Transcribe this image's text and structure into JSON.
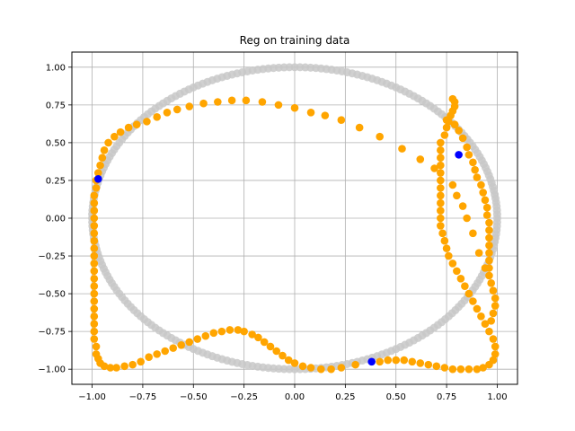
{
  "chart_data": {
    "type": "scatter",
    "title": "Reg on training data",
    "xlabel": "",
    "ylabel": "",
    "xlim": [
      -1.1,
      1.1
    ],
    "ylim": [
      -1.1,
      1.1
    ],
    "grid": true,
    "x_ticks": [
      -1.0,
      -0.75,
      -0.5,
      -0.25,
      0.0,
      0.25,
      0.5,
      0.75,
      1.0
    ],
    "y_ticks": [
      -1.0,
      -0.75,
      -0.5,
      -0.25,
      0.0,
      0.25,
      0.5,
      0.75,
      1.0
    ],
    "x_tick_labels": [
      "−1.00",
      "−0.75",
      "−0.50",
      "−0.25",
      "0.00",
      "0.25",
      "0.50",
      "0.75",
      "1.00"
    ],
    "y_tick_labels": [
      "−1.00",
      "−0.75",
      "−0.50",
      "−0.25",
      "0.00",
      "0.25",
      "0.50",
      "0.75",
      "1.00"
    ],
    "series": [
      {
        "name": "unit circle",
        "color": "#c8c8c8",
        "shape": "circle",
        "radius": 1.0,
        "count": 240
      },
      {
        "name": "regression",
        "color": "#ffa500",
        "points": [
          [
            0.78,
            0.79
          ],
          [
            0.79,
            0.77
          ],
          [
            0.79,
            0.74
          ],
          [
            0.78,
            0.71
          ],
          [
            0.77,
            0.68
          ],
          [
            0.75,
            0.65
          ],
          [
            0.75,
            0.6
          ],
          [
            0.74,
            0.55
          ],
          [
            0.72,
            0.5
          ],
          [
            0.72,
            0.45
          ],
          [
            0.72,
            0.4
          ],
          [
            0.72,
            0.35
          ],
          [
            0.72,
            0.3
          ],
          [
            0.72,
            0.25
          ],
          [
            0.72,
            0.2
          ],
          [
            0.72,
            0.15
          ],
          [
            0.72,
            0.1
          ],
          [
            0.72,
            0.05
          ],
          [
            0.72,
            0.0
          ],
          [
            0.72,
            -0.05
          ],
          [
            0.73,
            -0.1
          ],
          [
            0.74,
            -0.15
          ],
          [
            0.75,
            -0.2
          ],
          [
            0.76,
            -0.25
          ],
          [
            0.78,
            -0.3
          ],
          [
            0.8,
            -0.35
          ],
          [
            0.82,
            -0.4
          ],
          [
            0.84,
            -0.45
          ],
          [
            0.86,
            -0.5
          ],
          [
            0.88,
            -0.55
          ],
          [
            0.9,
            -0.6
          ],
          [
            0.92,
            -0.65
          ],
          [
            0.94,
            -0.7
          ],
          [
            0.96,
            -0.75
          ],
          [
            0.98,
            -0.8
          ],
          [
            0.99,
            -0.85
          ],
          [
            0.99,
            -0.9
          ],
          [
            0.98,
            -0.94
          ],
          [
            0.96,
            -0.97
          ],
          [
            0.93,
            -0.99
          ],
          [
            0.9,
            -1.0
          ],
          [
            0.86,
            -1.0
          ],
          [
            0.82,
            -1.0
          ],
          [
            0.78,
            -1.0
          ],
          [
            0.74,
            -0.99
          ],
          [
            0.7,
            -0.98
          ],
          [
            0.66,
            -0.97
          ],
          [
            0.62,
            -0.96
          ],
          [
            0.58,
            -0.95
          ],
          [
            0.54,
            -0.94
          ],
          [
            0.5,
            -0.94
          ],
          [
            0.46,
            -0.94
          ],
          [
            0.42,
            -0.95
          ],
          [
            0.3,
            -0.97
          ],
          [
            0.23,
            -0.99
          ],
          [
            0.18,
            -1.0
          ],
          [
            0.13,
            -1.0
          ],
          [
            0.08,
            -0.99
          ],
          [
            0.04,
            -0.98
          ],
          [
            0.0,
            -0.96
          ],
          [
            -0.03,
            -0.94
          ],
          [
            -0.06,
            -0.91
          ],
          [
            -0.09,
            -0.88
          ],
          [
            -0.12,
            -0.85
          ],
          [
            -0.15,
            -0.82
          ],
          [
            -0.18,
            -0.79
          ],
          [
            -0.21,
            -0.77
          ],
          [
            -0.25,
            -0.75
          ],
          [
            -0.28,
            -0.74
          ],
          [
            -0.32,
            -0.74
          ],
          [
            -0.36,
            -0.75
          ],
          [
            -0.4,
            -0.76
          ],
          [
            -0.44,
            -0.78
          ],
          [
            -0.48,
            -0.8
          ],
          [
            -0.52,
            -0.82
          ],
          [
            -0.56,
            -0.84
          ],
          [
            -0.6,
            -0.86
          ],
          [
            -0.64,
            -0.88
          ],
          [
            -0.68,
            -0.9
          ],
          [
            -0.72,
            -0.92
          ],
          [
            -0.76,
            -0.95
          ],
          [
            -0.8,
            -0.97
          ],
          [
            -0.84,
            -0.98
          ],
          [
            -0.88,
            -0.99
          ],
          [
            -0.91,
            -0.99
          ],
          [
            -0.94,
            -0.98
          ],
          [
            -0.96,
            -0.96
          ],
          [
            -0.97,
            -0.93
          ],
          [
            -0.98,
            -0.9
          ],
          [
            -0.98,
            -0.85
          ],
          [
            -0.99,
            -0.8
          ],
          [
            -0.99,
            -0.75
          ],
          [
            -0.99,
            -0.7
          ],
          [
            -0.99,
            -0.65
          ],
          [
            -0.99,
            -0.6
          ],
          [
            -0.99,
            -0.55
          ],
          [
            -0.99,
            -0.5
          ],
          [
            -0.99,
            -0.45
          ],
          [
            -0.99,
            -0.4
          ],
          [
            -0.99,
            -0.35
          ],
          [
            -0.99,
            -0.3
          ],
          [
            -0.99,
            -0.25
          ],
          [
            -0.99,
            -0.2
          ],
          [
            -0.99,
            -0.15
          ],
          [
            -0.99,
            -0.1
          ],
          [
            -0.99,
            -0.05
          ],
          [
            -0.99,
            0.0
          ],
          [
            -0.99,
            0.05
          ],
          [
            -0.99,
            0.1
          ],
          [
            -0.99,
            0.15
          ],
          [
            -0.98,
            0.2
          ],
          [
            -0.98,
            0.25
          ],
          [
            -0.97,
            0.3
          ],
          [
            -0.96,
            0.35
          ],
          [
            -0.95,
            0.4
          ],
          [
            -0.94,
            0.45
          ],
          [
            -0.92,
            0.5
          ],
          [
            -0.89,
            0.54
          ],
          [
            -0.86,
            0.57
          ],
          [
            -0.82,
            0.6
          ],
          [
            -0.78,
            0.62
          ],
          [
            -0.73,
            0.64
          ],
          [
            -0.68,
            0.67
          ],
          [
            -0.63,
            0.7
          ],
          [
            -0.58,
            0.72
          ],
          [
            -0.52,
            0.74
          ],
          [
            -0.45,
            0.76
          ],
          [
            -0.38,
            0.77
          ],
          [
            -0.31,
            0.78
          ],
          [
            -0.24,
            0.78
          ],
          [
            -0.16,
            0.77
          ],
          [
            -0.08,
            0.75
          ],
          [
            0.0,
            0.73
          ],
          [
            0.08,
            0.7
          ],
          [
            0.15,
            0.68
          ],
          [
            0.23,
            0.65
          ],
          [
            0.32,
            0.6
          ],
          [
            0.42,
            0.54
          ],
          [
            0.53,
            0.46
          ],
          [
            0.62,
            0.39
          ],
          [
            0.69,
            0.33
          ],
          [
            0.76,
            0.64
          ],
          [
            0.79,
            0.62
          ],
          [
            0.81,
            0.58
          ],
          [
            0.83,
            0.53
          ],
          [
            0.85,
            0.47
          ],
          [
            0.86,
            0.42
          ],
          [
            0.88,
            0.37
          ],
          [
            0.89,
            0.32
          ],
          [
            0.9,
            0.27
          ],
          [
            0.92,
            0.22
          ],
          [
            0.93,
            0.17
          ],
          [
            0.94,
            0.12
          ],
          [
            0.95,
            0.07
          ],
          [
            0.95,
            0.02
          ],
          [
            0.96,
            -0.03
          ],
          [
            0.96,
            -0.08
          ],
          [
            0.96,
            -0.13
          ],
          [
            0.96,
            -0.18
          ],
          [
            0.96,
            -0.23
          ],
          [
            0.96,
            -0.28
          ],
          [
            0.96,
            -0.33
          ],
          [
            0.96,
            -0.38
          ],
          [
            0.97,
            -0.43
          ],
          [
            0.98,
            -0.48
          ],
          [
            0.99,
            -0.53
          ],
          [
            0.99,
            -0.58
          ],
          [
            0.98,
            -0.63
          ],
          [
            0.97,
            -0.68
          ],
          [
            0.94,
            -0.33
          ],
          [
            0.91,
            -0.23
          ],
          [
            0.88,
            -0.1
          ],
          [
            0.85,
            0.0
          ],
          [
            0.83,
            0.08
          ],
          [
            0.8,
            0.15
          ],
          [
            0.78,
            0.22
          ]
        ]
      },
      {
        "name": "training points",
        "color": "#0000ff",
        "points": [
          [
            -0.97,
            0.26
          ],
          [
            0.81,
            0.42
          ],
          [
            0.38,
            -0.95
          ]
        ]
      }
    ]
  }
}
